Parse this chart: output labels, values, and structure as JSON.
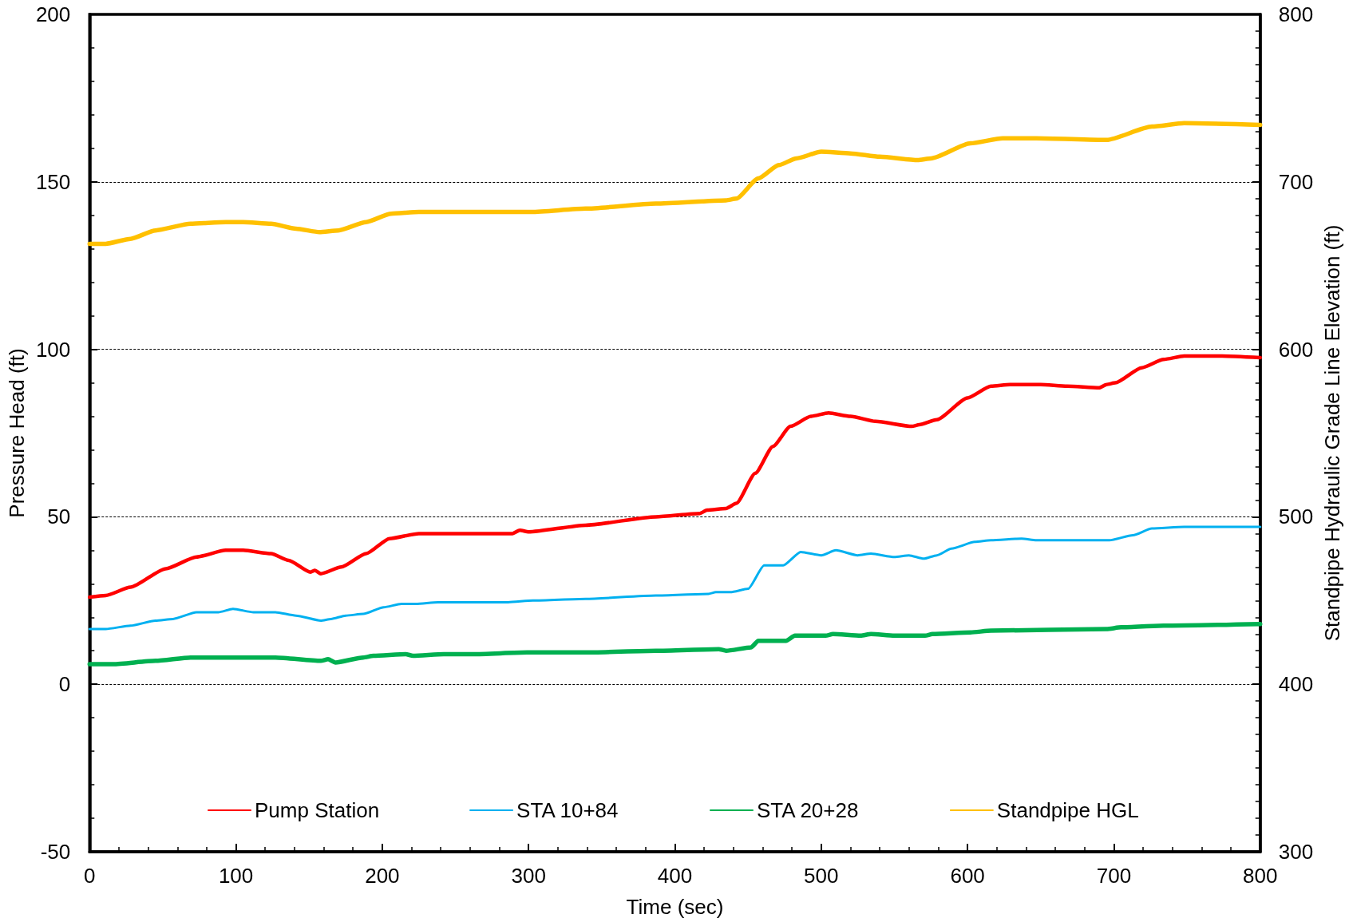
{
  "chart_data": {
    "type": "line",
    "xlabel": "Time (sec)",
    "ylabel": "Pressure Head (ft)",
    "y2label": "Standpipe Hydraulic Grade Line Elevation (ft)",
    "xlim": [
      0,
      800
    ],
    "xticks": [
      0,
      {
        "value": 20,
        "label": null
      },
      {
        "value": 40,
        "label": null
      },
      {
        "value": 60,
        "label": null
      },
      {
        "value": 80,
        "label": null
      },
      100,
      {
        "value": 120,
        "label": null
      },
      {
        "value": 140,
        "label": null
      },
      {
        "value": 160,
        "label": null
      },
      {
        "value": 180,
        "label": null
      },
      200,
      {
        "value": 220,
        "label": null
      },
      {
        "value": 240,
        "label": null
      },
      {
        "value": 260,
        "label": null
      },
      {
        "value": 280,
        "label": null
      },
      300,
      {
        "value": 320,
        "label": null
      },
      {
        "value": 340,
        "label": null
      },
      {
        "value": 360,
        "label": null
      },
      {
        "value": 380,
        "label": null
      },
      400,
      {
        "value": 420,
        "label": null
      },
      {
        "value": 440,
        "label": null
      },
      {
        "value": 460,
        "label": null
      },
      {
        "value": 480,
        "label": null
      },
      500,
      {
        "value": 520,
        "label": null
      },
      {
        "value": 540,
        "label": null
      },
      {
        "value": 560,
        "label": null
      },
      {
        "value": 580,
        "label": null
      },
      600,
      {
        "value": 620,
        "label": null
      },
      {
        "value": 640,
        "label": null
      },
      {
        "value": 660,
        "label": null
      },
      {
        "value": 680,
        "label": null
      },
      700,
      {
        "value": 720,
        "label": null
      },
      {
        "value": 740,
        "label": null
      },
      {
        "value": 760,
        "label": null
      },
      {
        "value": 780,
        "label": null
      },
      800
    ],
    "ylim": [
      -50,
      200
    ],
    "yticks": [
      -50,
      {
        "value": -40,
        "label": null
      },
      {
        "value": -30,
        "label": null
      },
      {
        "value": -20,
        "label": null
      },
      {
        "value": -10,
        "label": null
      },
      0,
      {
        "value": 10,
        "label": null
      },
      {
        "value": 20,
        "label": null
      },
      {
        "value": 30,
        "label": null
      },
      {
        "value": 40,
        "label": null
      },
      50,
      {
        "value": 60,
        "label": null
      },
      {
        "value": 70,
        "label": null
      },
      {
        "value": 80,
        "label": null
      },
      {
        "value": 90,
        "label": null
      },
      100,
      {
        "value": 110,
        "label": null
      },
      {
        "value": 120,
        "label": null
      },
      {
        "value": 130,
        "label": null
      },
      {
        "value": 140,
        "label": null
      },
      150,
      {
        "value": 160,
        "label": null
      },
      {
        "value": 170,
        "label": null
      },
      {
        "value": 180,
        "label": null
      },
      {
        "value": 190,
        "label": null
      },
      200
    ],
    "y2lim": [
      300,
      800
    ],
    "y2ticks": [
      300,
      {
        "value": 310,
        "label": null
      },
      {
        "value": 320,
        "label": null
      },
      {
        "value": 330,
        "label": null
      },
      {
        "value": 340,
        "label": null
      },
      {
        "value": 350,
        "label": null
      },
      {
        "value": 360,
        "label": null
      },
      {
        "value": 370,
        "label": null
      },
      {
        "value": 380,
        "label": null
      },
      {
        "value": 390,
        "label": null
      },
      400,
      {
        "value": 410,
        "label": null
      },
      {
        "value": 420,
        "label": null
      },
      {
        "value": 430,
        "label": null
      },
      {
        "value": 440,
        "label": null
      },
      {
        "value": 450,
        "label": null
      },
      {
        "value": 460,
        "label": null
      },
      {
        "value": 470,
        "label": null
      },
      {
        "value": 480,
        "label": null
      },
      {
        "value": 490,
        "label": null
      },
      500,
      {
        "value": 510,
        "label": null
      },
      {
        "value": 520,
        "label": null
      },
      {
        "value": 530,
        "label": null
      },
      {
        "value": 540,
        "label": null
      },
      {
        "value": 550,
        "label": null
      },
      {
        "value": 560,
        "label": null
      },
      {
        "value": 570,
        "label": null
      },
      {
        "value": 580,
        "label": null
      },
      {
        "value": 590,
        "label": null
      },
      600,
      {
        "value": 610,
        "label": null
      },
      {
        "value": 620,
        "label": null
      },
      {
        "value": 630,
        "label": null
      },
      {
        "value": 640,
        "label": null
      },
      {
        "value": 650,
        "label": null
      },
      {
        "value": 660,
        "label": null
      },
      {
        "value": 670,
        "label": null
      },
      {
        "value": 680,
        "label": null
      },
      {
        "value": 690,
        "label": null
      },
      700,
      {
        "value": 710,
        "label": null
      },
      {
        "value": 720,
        "label": null
      },
      {
        "value": 730,
        "label": null
      },
      {
        "value": 740,
        "label": null
      },
      {
        "value": 750,
        "label": null
      },
      {
        "value": 760,
        "label": null
      },
      {
        "value": 770,
        "label": null
      },
      {
        "value": 780,
        "label": null
      },
      {
        "value": 790,
        "label": null
      },
      800
    ],
    "grid": "y",
    "legend": "bottom",
    "marker": "none",
    "line_style": "solid",
    "series": [
      {
        "name": "Pump Station",
        "color": "#ff0000",
        "x": [
          0,
          11,
          28,
          52,
          73,
          93,
          105,
          124,
          136,
          151,
          154,
          158,
          172,
          189,
          205,
          225,
          262,
          289,
          294,
          300,
          339,
          387,
          417,
          422,
          435,
          442,
          455,
          467,
          479,
          493,
          505,
          520,
          537,
          562,
          567,
          579,
          600,
          616,
          629,
          650,
          668,
          690,
          695,
          701,
          719,
          734,
          748,
          774,
          800
        ],
        "values": [
          26,
          26.5,
          29,
          34.5,
          38,
          40,
          40,
          39,
          37,
          33.5,
          34,
          33,
          35,
          39,
          43.5,
          45,
          45,
          45,
          46,
          45.5,
          47.5,
          50,
          51,
          52,
          52.5,
          54,
          63,
          71,
          77,
          80,
          81,
          80,
          78.5,
          77,
          77.5,
          79,
          85.5,
          89,
          89.5,
          89.5,
          89,
          88.5,
          89.5,
          90,
          94.5,
          97,
          98,
          98,
          97.5
        ]
      },
      {
        "name": "STA 10+84",
        "color": "#00b0f0",
        "x": [
          0,
          11,
          28,
          45,
          57,
          73,
          88,
          98,
          112,
          127,
          141,
          158,
          165,
          175,
          187,
          201,
          213,
          223,
          238,
          262,
          286,
          303,
          339,
          387,
          423,
          428,
          438,
          450,
          461,
          474,
          486,
          500,
          510,
          525,
          534,
          550,
          560,
          570,
          579,
          589,
          605,
          616,
          637,
          647,
          668,
          697,
          713,
          726,
          748,
          774,
          800
        ],
        "values": [
          16.5,
          16.5,
          17.5,
          19,
          19.5,
          21.5,
          21.5,
          22.5,
          21.5,
          21.5,
          20.5,
          19,
          19.5,
          20.5,
          21,
          23,
          24,
          24,
          24.5,
          24.5,
          24.5,
          25,
          25.5,
          26.5,
          27,
          27.5,
          27.5,
          28.5,
          35.5,
          35.5,
          39.5,
          38.5,
          40,
          38.5,
          39,
          38,
          38.5,
          37.5,
          38.5,
          40.5,
          42.5,
          43,
          43.5,
          43,
          43,
          43,
          44.5,
          46.5,
          47,
          47,
          47
        ]
      },
      {
        "name": "STA 20+28",
        "color": "#00b050",
        "x": [
          0,
          16,
          45,
          69,
          98,
          127,
          158,
          163,
          168,
          187,
          194,
          216,
          221,
          242,
          262,
          299,
          339,
          387,
          430,
          435,
          452,
          457,
          476,
          482,
          503,
          508,
          527,
          534,
          550,
          571,
          576,
          602,
          616,
          695,
          705,
          734,
          800
        ],
        "values": [
          6,
          6,
          7,
          8,
          8,
          8,
          7,
          7.5,
          6.5,
          8,
          8.5,
          9,
          8.5,
          9,
          9,
          9.5,
          9.5,
          10,
          10.5,
          10,
          11,
          13,
          13,
          14.5,
          14.5,
          15,
          14.5,
          15,
          14.5,
          14.5,
          15,
          15.5,
          16,
          16.5,
          17,
          17.5,
          18
        ]
      },
      {
        "name": "Standpipe HGL",
        "color": "#ffc000",
        "axis": "y2",
        "x": [
          0,
          11,
          28,
          45,
          69,
          93,
          105,
          124,
          141,
          157,
          170,
          189,
          206,
          225,
          262,
          302,
          339,
          387,
          435,
          442,
          457,
          471,
          483,
          500,
          520,
          540,
          566,
          575,
          602,
          624,
          647,
          695,
          726,
          748,
          800
        ],
        "values": [
          663,
          663,
          666,
          671,
          675,
          676,
          676,
          675,
          672,
          670,
          671,
          676,
          681,
          682,
          682,
          682,
          684,
          687,
          689,
          690,
          702,
          710,
          714,
          718,
          717,
          715,
          713,
          714,
          723,
          726,
          726,
          725,
          733,
          735,
          734
        ]
      }
    ]
  }
}
